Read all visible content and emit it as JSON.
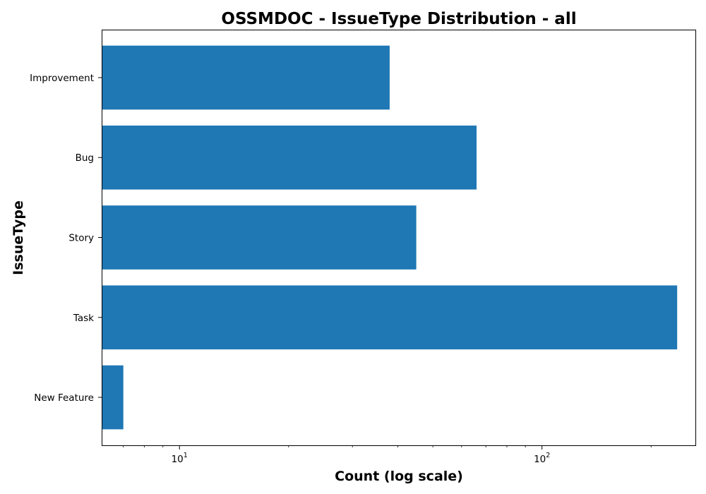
{
  "chart_data": {
    "type": "bar",
    "orientation": "horizontal",
    "title": "OSSMDOC - IssueType Distribution - all",
    "xlabel": "Count (log scale)",
    "ylabel": "IssueType",
    "xscale": "log",
    "xlim": [
      6.1,
      265
    ],
    "xticks": [
      {
        "value": 10,
        "base": "10",
        "exp": "1"
      },
      {
        "value": 100,
        "base": "10",
        "exp": "2"
      }
    ],
    "categories": [
      "Improvement",
      "Bug",
      "Story",
      "Task",
      "New Feature"
    ],
    "values": [
      38,
      66,
      45,
      236,
      7
    ],
    "bar_color": "#1f77b4",
    "grid": false
  }
}
